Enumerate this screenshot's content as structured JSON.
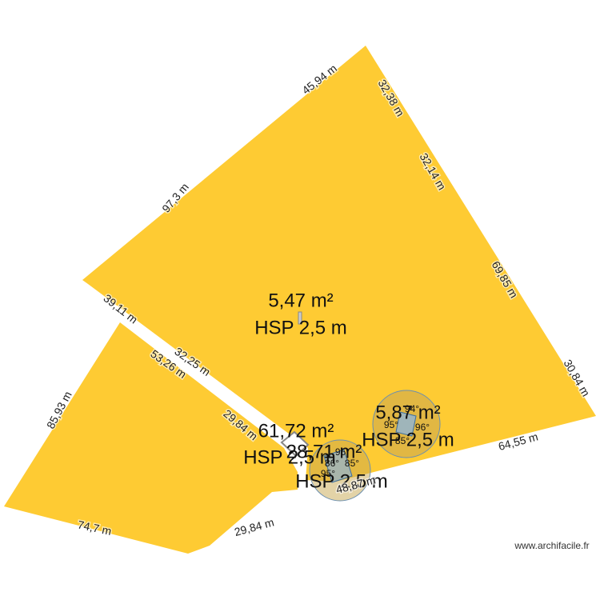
{
  "rooms": [
    {
      "area": "5,47 m²",
      "height": "HSP 2,5 m"
    },
    {
      "area": "61,72 m²",
      "height": "HSP 2,5 m"
    },
    {
      "area": "28,71 m²",
      "height": "HSP 2,5 m"
    },
    {
      "area": "5,87 m²",
      "height": "HSP 2,5 m"
    }
  ],
  "dimensions": [
    "45,94 m",
    "32,38 m",
    "32,14 m",
    "97,3 m",
    "69,85 m",
    "30,84 m",
    "39,11 m",
    "53,26 m",
    "32,25 m",
    "85,93 m",
    "29,84 m",
    "64,55 m",
    "74,7 m",
    "29,84 m",
    "48,87 m"
  ],
  "angles": [
    "94°",
    "95°",
    "96°",
    "85°",
    "95°",
    "86°",
    "85°",
    "95°"
  ],
  "watermark": "www.archifacile.fr"
}
